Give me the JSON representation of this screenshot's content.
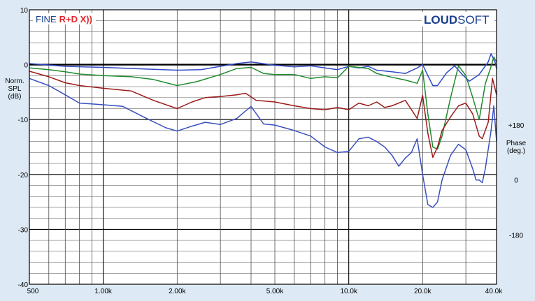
{
  "chart_data": {
    "type": "line",
    "xscale": "log",
    "xlim": [
      500,
      40000
    ],
    "ylim": [
      -40,
      10
    ],
    "grid": true,
    "y_axis_label": [
      "Norm.",
      "SPL",
      "(dB)"
    ],
    "right_axis_label": [
      "Phase",
      "(deg.)"
    ],
    "y_ticks": [
      {
        "label": "10",
        "value": 10
      },
      {
        "label": "0",
        "value": 0
      },
      {
        "label": "-10",
        "value": -10
      },
      {
        "label": "-20",
        "value": -20
      },
      {
        "label": "-30",
        "value": -30
      },
      {
        "label": "-40",
        "value": -40
      }
    ],
    "right_ticks": [
      {
        "label": "+180",
        "value": -11
      },
      {
        "label": "0",
        "value": -21
      },
      {
        "label": "-180",
        "value": -31
      }
    ],
    "x_ticks": [
      {
        "label": "500",
        "value": 500
      },
      {
        "label": "1.00k",
        "value": 1000
      },
      {
        "label": "2.00k",
        "value": 2000
      },
      {
        "label": "5.00k",
        "value": 5000
      },
      {
        "label": "10.0k",
        "value": 10000
      },
      {
        "label": "20.0k",
        "value": 20000
      },
      {
        "label": "40.0k",
        "value": 40000
      }
    ],
    "reference_line": 0,
    "series": [
      {
        "color": "#2f48c8",
        "points": [
          [
            500,
            0.2
          ],
          [
            700,
            -0.3
          ],
          [
            1000,
            -0.5
          ],
          [
            1500,
            -0.8
          ],
          [
            2000,
            -1.0
          ],
          [
            2500,
            -0.9
          ],
          [
            3000,
            -0.3
          ],
          [
            3500,
            0.2
          ],
          [
            4000,
            0.5
          ],
          [
            5000,
            -0.1
          ],
          [
            6000,
            -0.4
          ],
          [
            7000,
            -0.2
          ],
          [
            8000,
            -0.6
          ],
          [
            9000,
            -0.9
          ],
          [
            10000,
            -0.3
          ],
          [
            11000,
            -0.6
          ],
          [
            12000,
            -0.3
          ],
          [
            13000,
            -1.0
          ],
          [
            15000,
            -1.3
          ],
          [
            17000,
            -1.6
          ],
          [
            19000,
            -0.6
          ],
          [
            20000,
            0.0
          ],
          [
            21000,
            -2.0
          ],
          [
            22000,
            -3.8
          ],
          [
            23000,
            -3.8
          ],
          [
            25000,
            -1.5
          ],
          [
            27000,
            -0.2
          ],
          [
            29000,
            -1.8
          ],
          [
            31000,
            -3.0
          ],
          [
            34000,
            -1.8
          ],
          [
            37000,
            0.5
          ],
          [
            38000,
            2.0
          ],
          [
            39500,
            0.4
          ],
          [
            40000,
            -0.8
          ]
        ]
      },
      {
        "color": "#1e8a2c",
        "points": [
          [
            500,
            -0.6
          ],
          [
            600,
            -0.9
          ],
          [
            700,
            -1.3
          ],
          [
            800,
            -1.7
          ],
          [
            1000,
            -2.0
          ],
          [
            1300,
            -2.2
          ],
          [
            1600,
            -2.7
          ],
          [
            2000,
            -3.8
          ],
          [
            2400,
            -3.1
          ],
          [
            3000,
            -1.8
          ],
          [
            3500,
            -0.7
          ],
          [
            4000,
            -0.5
          ],
          [
            4500,
            -1.6
          ],
          [
            5000,
            -1.8
          ],
          [
            6000,
            -1.8
          ],
          [
            7000,
            -2.5
          ],
          [
            8000,
            -2.2
          ],
          [
            9000,
            -2.4
          ],
          [
            10000,
            -0.3
          ],
          [
            11000,
            -0.5
          ],
          [
            12000,
            -0.7
          ],
          [
            13000,
            -1.6
          ],
          [
            15000,
            -2.3
          ],
          [
            17000,
            -2.8
          ],
          [
            19000,
            -3.4
          ],
          [
            20000,
            -1.0
          ],
          [
            21000,
            -9.0
          ],
          [
            22000,
            -15.0
          ],
          [
            23000,
            -15.4
          ],
          [
            24000,
            -13.0
          ],
          [
            26000,
            -6.0
          ],
          [
            28000,
            -0.2
          ],
          [
            30000,
            -2.0
          ],
          [
            32000,
            -6.0
          ],
          [
            34000,
            -10.0
          ],
          [
            36000,
            -3.5
          ],
          [
            38000,
            -0.3
          ],
          [
            39000,
            1.4
          ],
          [
            40000,
            0.5
          ]
        ]
      },
      {
        "color": "#9b1b1b",
        "points": [
          [
            500,
            -1.2
          ],
          [
            600,
            -2.2
          ],
          [
            700,
            -3.3
          ],
          [
            800,
            -3.8
          ],
          [
            1000,
            -4.3
          ],
          [
            1300,
            -4.8
          ],
          [
            1600,
            -6.5
          ],
          [
            2000,
            -8.0
          ],
          [
            2300,
            -6.8
          ],
          [
            2600,
            -6.0
          ],
          [
            3000,
            -5.8
          ],
          [
            3500,
            -5.5
          ],
          [
            3800,
            -5.2
          ],
          [
            4200,
            -6.5
          ],
          [
            5000,
            -6.8
          ],
          [
            6000,
            -7.5
          ],
          [
            7000,
            -8.0
          ],
          [
            8000,
            -8.2
          ],
          [
            9000,
            -7.8
          ],
          [
            10000,
            -8.2
          ],
          [
            11000,
            -7.0
          ],
          [
            12000,
            -7.5
          ],
          [
            13000,
            -6.8
          ],
          [
            14000,
            -7.8
          ],
          [
            15000,
            -7.5
          ],
          [
            17000,
            -6.5
          ],
          [
            19000,
            -9.8
          ],
          [
            20000,
            -5.6
          ],
          [
            21000,
            -12.5
          ],
          [
            22000,
            -16.9
          ],
          [
            23000,
            -15.0
          ],
          [
            24000,
            -12.0
          ],
          [
            26000,
            -9.5
          ],
          [
            28000,
            -7.5
          ],
          [
            30000,
            -7.0
          ],
          [
            32000,
            -9.0
          ],
          [
            34000,
            -13.0
          ],
          [
            35000,
            -13.5
          ],
          [
            37000,
            -10.5
          ],
          [
            38500,
            -2.5
          ],
          [
            39500,
            -4.5
          ],
          [
            40000,
            -5.5
          ]
        ]
      },
      {
        "color": "#3a4fbf",
        "points": [
          [
            500,
            -2.5
          ],
          [
            600,
            -3.8
          ],
          [
            700,
            -5.5
          ],
          [
            800,
            -7.0
          ],
          [
            1000,
            -7.3
          ],
          [
            1200,
            -7.6
          ],
          [
            1500,
            -9.8
          ],
          [
            1800,
            -11.5
          ],
          [
            2000,
            -12.1
          ],
          [
            2300,
            -11.2
          ],
          [
            2600,
            -10.5
          ],
          [
            3000,
            -10.9
          ],
          [
            3500,
            -9.8
          ],
          [
            4000,
            -7.6
          ],
          [
            4500,
            -10.8
          ],
          [
            5000,
            -11.0
          ],
          [
            6000,
            -12.0
          ],
          [
            7000,
            -13.0
          ],
          [
            8000,
            -15.0
          ],
          [
            9000,
            -16.0
          ],
          [
            10000,
            -15.8
          ],
          [
            11000,
            -13.5
          ],
          [
            12000,
            -13.2
          ],
          [
            13000,
            -14.0
          ],
          [
            14000,
            -15.0
          ],
          [
            15000,
            -16.5
          ],
          [
            16000,
            -18.5
          ],
          [
            17000,
            -17.0
          ],
          [
            18000,
            -16.0
          ],
          [
            19000,
            -13.5
          ],
          [
            20000,
            -20.0
          ],
          [
            21000,
            -25.5
          ],
          [
            22000,
            -26.0
          ],
          [
            23000,
            -25.0
          ],
          [
            24000,
            -21.0
          ],
          [
            26000,
            -16.5
          ],
          [
            28000,
            -14.5
          ],
          [
            30000,
            -15.5
          ],
          [
            32000,
            -19.0
          ],
          [
            33000,
            -21.0
          ],
          [
            34000,
            -21.0
          ],
          [
            35000,
            -21.5
          ],
          [
            36000,
            -19.0
          ],
          [
            38000,
            -12.0
          ],
          [
            39000,
            -7.5
          ],
          [
            40000,
            -14.0
          ]
        ]
      }
    ]
  },
  "logo": {
    "fine": "FINE",
    "rd": "R+D X))",
    "loud": "LOUD",
    "soft": "SOFT"
  }
}
